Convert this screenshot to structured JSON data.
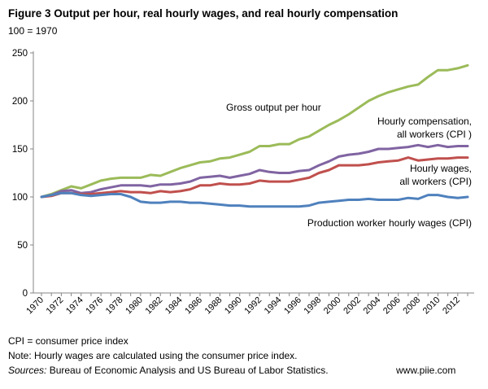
{
  "header": {
    "title": "Figure 3 Output per hour, real hourly wages, and real hourly compensation",
    "subtitle": "100 = 1970"
  },
  "footer": {
    "note1": "CPI = consumer price index",
    "note2": "Note: Hourly wages are calculated using the consumer price index.",
    "sources_label": "Sources:",
    "sources_text": "Bureau of Economic Analysis and US Bureau of Labor Statistics.",
    "website": "www.piie.com"
  },
  "chart_data": {
    "type": "line",
    "title": "Figure 3 Output per hour, real hourly wages, and real hourly compensation",
    "xlabel": "",
    "ylabel": "100 = 1970",
    "ylim": [
      0,
      250
    ],
    "yticks": [
      0,
      50,
      100,
      150,
      200,
      250
    ],
    "grid": false,
    "x": [
      1970,
      1971,
      1972,
      1973,
      1974,
      1975,
      1976,
      1977,
      1978,
      1979,
      1980,
      1981,
      1982,
      1983,
      1984,
      1985,
      1986,
      1987,
      1988,
      1989,
      1990,
      1991,
      1992,
      1993,
      1994,
      1995,
      1996,
      1997,
      1998,
      1999,
      2000,
      2001,
      2002,
      2003,
      2004,
      2005,
      2006,
      2007,
      2008,
      2009,
      2010,
      2011,
      2012,
      2013
    ],
    "xtick_labels": [
      "1970",
      "1972",
      "1974",
      "1976",
      "1978",
      "1980",
      "1982",
      "1984",
      "1986",
      "1988",
      "1990",
      "1992",
      "1994",
      "1996",
      "1998",
      "2000",
      "2002",
      "2004",
      "2006",
      "2008",
      "2010",
      "2012"
    ],
    "series": [
      {
        "name": "Gross output per hour",
        "label_lines": [
          "Gross output per hour"
        ],
        "color": "#9bbb59",
        "values": [
          100,
          103,
          107,
          111,
          109,
          113,
          117,
          119,
          120,
          120,
          120,
          123,
          122,
          126,
          130,
          133,
          136,
          137,
          140,
          141,
          144,
          147,
          153,
          153,
          155,
          155,
          160,
          163,
          169,
          175,
          180,
          186,
          193,
          200,
          205,
          209,
          212,
          215,
          217,
          225,
          232,
          232,
          234,
          237
        ]
      },
      {
        "name": "Hourly compensation, all workers (CPI)",
        "label_lines": [
          "Hourly compensation,",
          "all workers (CPI )"
        ],
        "color": "#8064a2",
        "values": [
          100,
          102,
          106,
          107,
          104,
          105,
          108,
          110,
          112,
          112,
          112,
          111,
          113,
          113,
          114,
          116,
          120,
          121,
          122,
          120,
          122,
          124,
          128,
          126,
          125,
          125,
          127,
          128,
          133,
          137,
          142,
          144,
          145,
          147,
          150,
          150,
          151,
          152,
          154,
          152,
          154,
          152,
          153,
          153
        ]
      },
      {
        "name": "Hourly wages, all workers (CPI)",
        "label_lines": [
          "Hourly wages,",
          "all workers (CPI)"
        ],
        "color": "#c0504d",
        "values": [
          100,
          101,
          104,
          104,
          103,
          103,
          104,
          105,
          106,
          105,
          105,
          104,
          106,
          105,
          106,
          108,
          112,
          112,
          114,
          113,
          113,
          114,
          117,
          116,
          116,
          116,
          118,
          120,
          125,
          128,
          133,
          133,
          133,
          134,
          136,
          137,
          138,
          141,
          138,
          139,
          140,
          140,
          141,
          141
        ]
      },
      {
        "name": "Production worker hourly wages (CPI)",
        "label_lines": [
          "Production worker hourly wages (CPI)"
        ],
        "color": "#4f81bd",
        "values": [
          100,
          102,
          104,
          104,
          102,
          101,
          102,
          103,
          103,
          100,
          95,
          94,
          94,
          95,
          95,
          94,
          94,
          93,
          92,
          91,
          91,
          90,
          90,
          90,
          90,
          90,
          90,
          91,
          94,
          95,
          96,
          97,
          97,
          98,
          97,
          97,
          97,
          99,
          98,
          102,
          102,
          100,
          99,
          100
        ]
      }
    ]
  }
}
